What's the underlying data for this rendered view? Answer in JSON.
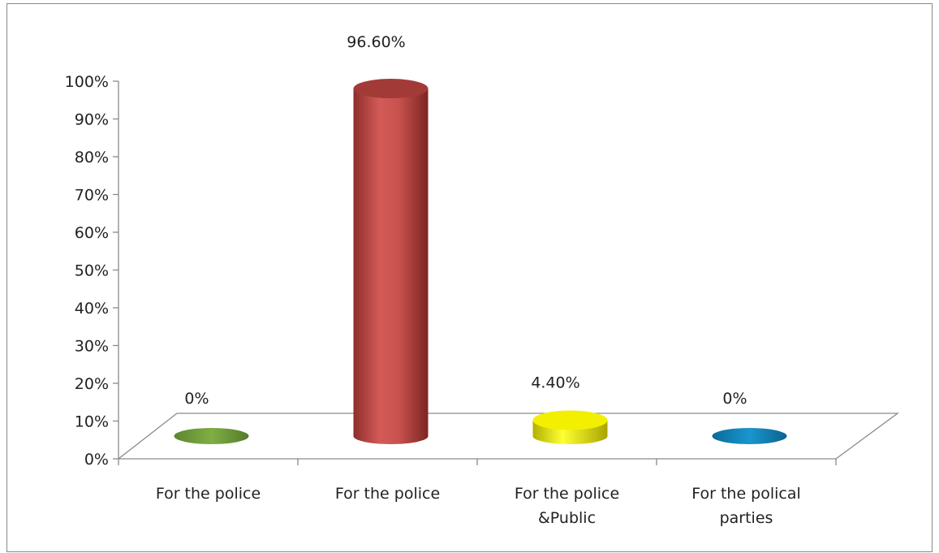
{
  "chart_data": {
    "type": "bar",
    "title": "",
    "xlabel": "",
    "ylabel": "",
    "categories": [
      [
        "For the police"
      ],
      [
        "For the police"
      ],
      [
        "For the police",
        "&Public"
      ],
      [
        "For the polical",
        "parties"
      ]
    ],
    "values": [
      0,
      96.6,
      4.4,
      0
    ],
    "data_labels": [
      "0%",
      "96.60%",
      "4.40%",
      "0%"
    ],
    "y_ticks": [
      "0%",
      "10%",
      "20%",
      "30%",
      "40%",
      "50%",
      "60%",
      "70%",
      "80%",
      "90%",
      "100%"
    ],
    "ylim": [
      0,
      100
    ],
    "grid": false,
    "legend": "none",
    "colors": [
      "#76a03c",
      "#c0504d",
      "#e8e400",
      "#1388c0"
    ]
  }
}
